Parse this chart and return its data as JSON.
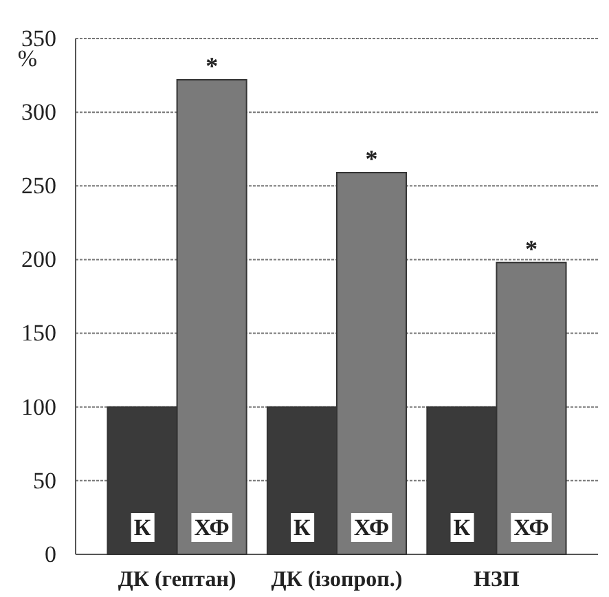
{
  "chart_data": {
    "type": "bar",
    "ylabel": "%",
    "categories": [
      "ДК (гептан)",
      "ДК (ізопроп.)",
      "НЗП"
    ],
    "series": [
      {
        "name": "К",
        "color": "#3a3a3a",
        "values": [
          100,
          100,
          100
        ]
      },
      {
        "name": "ХФ",
        "color": "#7a7a7a",
        "values": [
          322,
          259,
          198
        ]
      }
    ],
    "ylim": [
      0,
      350
    ],
    "yticks": [
      0,
      50,
      100,
      150,
      200,
      250,
      300,
      350
    ],
    "grid": "y",
    "annotations": [
      {
        "text": "*",
        "x": "ДК (гептан)",
        "y": 322
      },
      {
        "text": "*",
        "x": "ДК (ізопроп.)",
        "y": 259
      },
      {
        "text": "*",
        "x": "НЗП",
        "y": 198
      }
    ]
  }
}
